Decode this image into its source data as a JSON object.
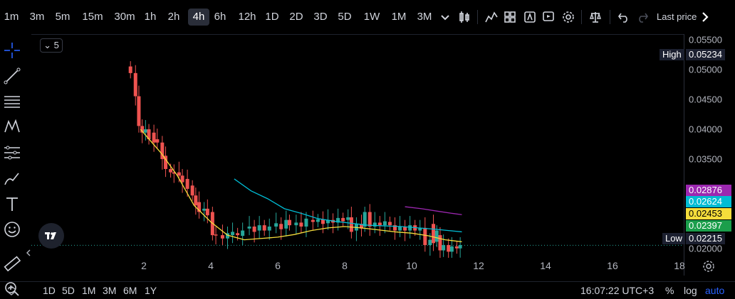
{
  "timeframes": [
    {
      "label": "1m",
      "active": false
    },
    {
      "label": "3m",
      "active": false
    },
    {
      "label": "5m",
      "active": false
    },
    {
      "label": "15m",
      "active": false
    },
    {
      "label": "30m",
      "active": false
    },
    {
      "label": "1h",
      "active": false
    },
    {
      "label": "2h",
      "active": false
    },
    {
      "label": "4h",
      "active": true
    },
    {
      "label": "6h",
      "active": false
    },
    {
      "label": "12h",
      "active": false
    },
    {
      "label": "1D",
      "active": false
    },
    {
      "label": "2D",
      "active": false
    },
    {
      "label": "3D",
      "active": false
    },
    {
      "label": "5D",
      "active": false
    },
    {
      "label": "1W",
      "active": false
    },
    {
      "label": "1M",
      "active": false
    },
    {
      "label": "3M",
      "active": false
    }
  ],
  "toolbar_right": {
    "last_price_label": "Last price"
  },
  "indicator_collapse": {
    "count": "5"
  },
  "price_scale": {
    "ticks": [
      "0.05500",
      "0.05000",
      "0.04500",
      "0.04000",
      "0.03500",
      "0.02000"
    ],
    "high_label": "High",
    "high_value": "0.05234",
    "low_label": "Low",
    "low_value": "0.02215",
    "markers": [
      {
        "value": "0.02876",
        "color": "#9c27b0"
      },
      {
        "value": "0.02624",
        "color": "#00bcd4"
      },
      {
        "value": "0.02453",
        "color": "#f5dd3b"
      },
      {
        "value": "0.02397",
        "color": "#1b9e4b"
      }
    ]
  },
  "time_scale": {
    "ticks": [
      "2",
      "4",
      "6",
      "8",
      "10",
      "12",
      "14",
      "16",
      "18"
    ]
  },
  "bottom": {
    "ranges": [
      "1D",
      "5D",
      "1M",
      "3M",
      "6M",
      "1Y"
    ],
    "clock": "16:07:22 UTC+3",
    "percent": "%",
    "log": "log",
    "auto": "auto"
  },
  "chart_data": {
    "type": "candlestick",
    "y_range": [
      0.0195,
      0.056
    ],
    "x_range": [
      0.9,
      18
    ],
    "colors": {
      "up": "#26a69a",
      "down": "#ef5350",
      "ma_yellow": "#f5dd3b",
      "ma_cyan": "#00bcd4",
      "ma_purple": "#9c27b0"
    },
    "ma_yellow": [
      [
        1.9,
        0.0415
      ],
      [
        2.5,
        0.038
      ],
      [
        3,
        0.0345
      ],
      [
        3.5,
        0.03
      ],
      [
        4,
        0.0275
      ],
      [
        4.5,
        0.0255
      ],
      [
        5,
        0.0248
      ],
      [
        5.5,
        0.025
      ],
      [
        6,
        0.0252
      ],
      [
        6.5,
        0.0256
      ],
      [
        7,
        0.0262
      ],
      [
        7.5,
        0.0266
      ],
      [
        8,
        0.0268
      ],
      [
        8.5,
        0.0266
      ],
      [
        9,
        0.0263
      ],
      [
        9.5,
        0.026
      ],
      [
        10,
        0.0258
      ],
      [
        10.5,
        0.0254
      ],
      [
        11,
        0.0248
      ],
      [
        11.5,
        0.0245
      ]
    ],
    "ma_cyan": [
      [
        4.7,
        0.034
      ],
      [
        5.2,
        0.0322
      ],
      [
        5.7,
        0.031
      ],
      [
        6.2,
        0.0295
      ],
      [
        6.7,
        0.0288
      ],
      [
        7.2,
        0.028
      ],
      [
        7.7,
        0.0276
      ],
      [
        8.2,
        0.0273
      ],
      [
        8.7,
        0.027
      ],
      [
        9.2,
        0.0269
      ],
      [
        9.7,
        0.0268
      ],
      [
        10.2,
        0.0266
      ],
      [
        10.7,
        0.0264
      ],
      [
        11.1,
        0.0262
      ],
      [
        11.5,
        0.026
      ]
    ],
    "ma_purple": [
      [
        9.8,
        0.0298
      ],
      [
        10.3,
        0.0295
      ],
      [
        10.8,
        0.0291
      ],
      [
        11.2,
        0.0288
      ],
      [
        11.5,
        0.0286
      ]
    ]
  }
}
